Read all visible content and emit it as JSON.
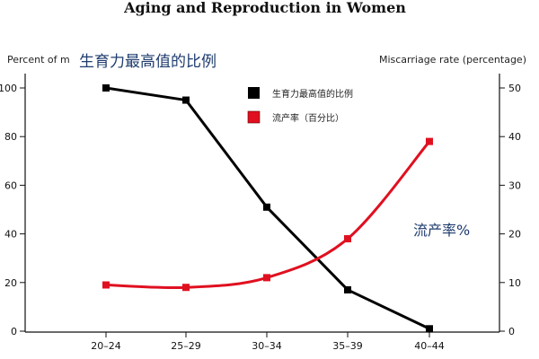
{
  "chart_data": {
    "type": "line",
    "title": "Aging and Reproduction in Women",
    "ylabel_left": "Percent of m",
    "ylabel_right": "Miscarriage rate (percentage)",
    "annotation_left": "生育力最高值的比例",
    "annotation_right": "流产率%",
    "categories": [
      "20–24",
      "25–29",
      "30–34",
      "35–39",
      "40–44"
    ],
    "ylim_left": [
      0,
      100
    ],
    "ylim_right": [
      0,
      50
    ],
    "yticks_left": [
      "0",
      "20",
      "40",
      "60",
      "80",
      "100"
    ],
    "yticks_right": [
      "0",
      "10",
      "20",
      "30",
      "40",
      "50"
    ],
    "grid": false,
    "legend_position": "top-center",
    "series": [
      {
        "name": "生育力最高值的比例",
        "axis": "left",
        "color": "#000000",
        "values": [
          100,
          95,
          51,
          17,
          1
        ]
      },
      {
        "name": "流产率（百分比）",
        "axis": "right",
        "color": "#e01020",
        "values": [
          9.5,
          9,
          11,
          19,
          39
        ]
      }
    ]
  }
}
